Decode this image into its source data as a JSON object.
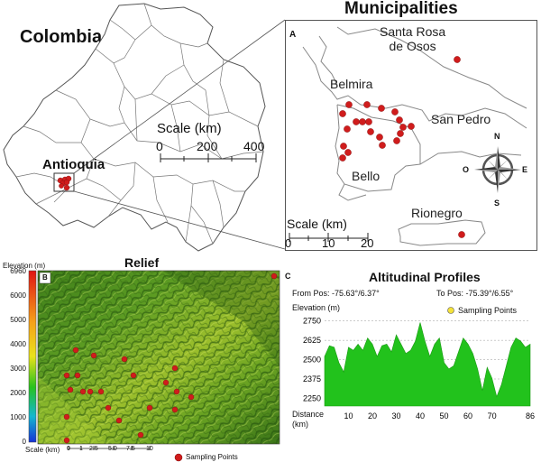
{
  "panel_colombia": {
    "country_title": "Colombia",
    "region_label": "Antioquia",
    "scale_title": "Scale (km)",
    "scale_ticks": [
      "0",
      "200",
      "400"
    ]
  },
  "panel_a": {
    "section_title": "Municipalities",
    "letter": "A",
    "towns": {
      "santa_rosa_line1": "Santa Rosa",
      "santa_rosa_line2": "de Osos",
      "belmira": "Belmira",
      "san_pedro": "San Pedro",
      "bello": "Bello",
      "rionegro": "Rionegro"
    },
    "scale_title": "Scale (km)",
    "scale_ticks": [
      "0",
      "10",
      "20"
    ],
    "compass": {
      "n": "N",
      "s": "S",
      "e": "E",
      "o": "O"
    },
    "point_color": "#d01c1c"
  },
  "panel_b": {
    "section_title": "Relief",
    "letter": "B",
    "colorbar_title": "Elevation",
    "colorbar_unit": "(m)",
    "colorbar_ticks": [
      "6960",
      "6000",
      "5000",
      "4000",
      "3000",
      "2000",
      "1000",
      "0"
    ],
    "scale_label": "Scale (km)",
    "scale_ticks": [
      "0",
      "1",
      "2.5",
      "5.0",
      "7.5",
      "10"
    ],
    "legend_label": "Sampling Points"
  },
  "panel_c": {
    "section_title": "Altitudinal Profiles",
    "letter": "C",
    "from_label": "From Pos: -75.63°/6.37°",
    "to_label": "To Pos: -75.39°/6.55°",
    "legend_label": "Sampling Points",
    "y_title": "Elevation",
    "y_unit": "(m)",
    "y_ticks": [
      "2750",
      "2625",
      "2500",
      "2375",
      "2250"
    ],
    "x_title_line1": "Distance",
    "x_title_line2": "(km)",
    "x_ticks": [
      "10",
      "20",
      "30",
      "40",
      "50",
      "60",
      "70",
      "86"
    ],
    "fill_color": "#22c21c"
  },
  "chart_data": {
    "type": "area",
    "xlabel": "Distance (km)",
    "ylabel": "Elevation (m)",
    "xlim": [
      0,
      86
    ],
    "ylim": [
      2200,
      2760
    ],
    "x": [
      0,
      2,
      4,
      6,
      8,
      10,
      12,
      14,
      16,
      18,
      20,
      22,
      24,
      26,
      28,
      30,
      32,
      34,
      36,
      38,
      40,
      42,
      44,
      46,
      48,
      50,
      52,
      54,
      56,
      58,
      60,
      62,
      64,
      66,
      68,
      70,
      72,
      74,
      76,
      78,
      80,
      82,
      84,
      86
    ],
    "y": [
      2520,
      2590,
      2580,
      2480,
      2420,
      2580,
      2560,
      2600,
      2560,
      2640,
      2600,
      2520,
      2590,
      2600,
      2550,
      2660,
      2600,
      2540,
      2560,
      2620,
      2740,
      2620,
      2520,
      2600,
      2640,
      2480,
      2440,
      2460,
      2550,
      2640,
      2600,
      2540,
      2440,
      2300,
      2450,
      2380,
      2260,
      2340,
      2460,
      2580,
      2640,
      2620,
      2580,
      2600
    ]
  }
}
